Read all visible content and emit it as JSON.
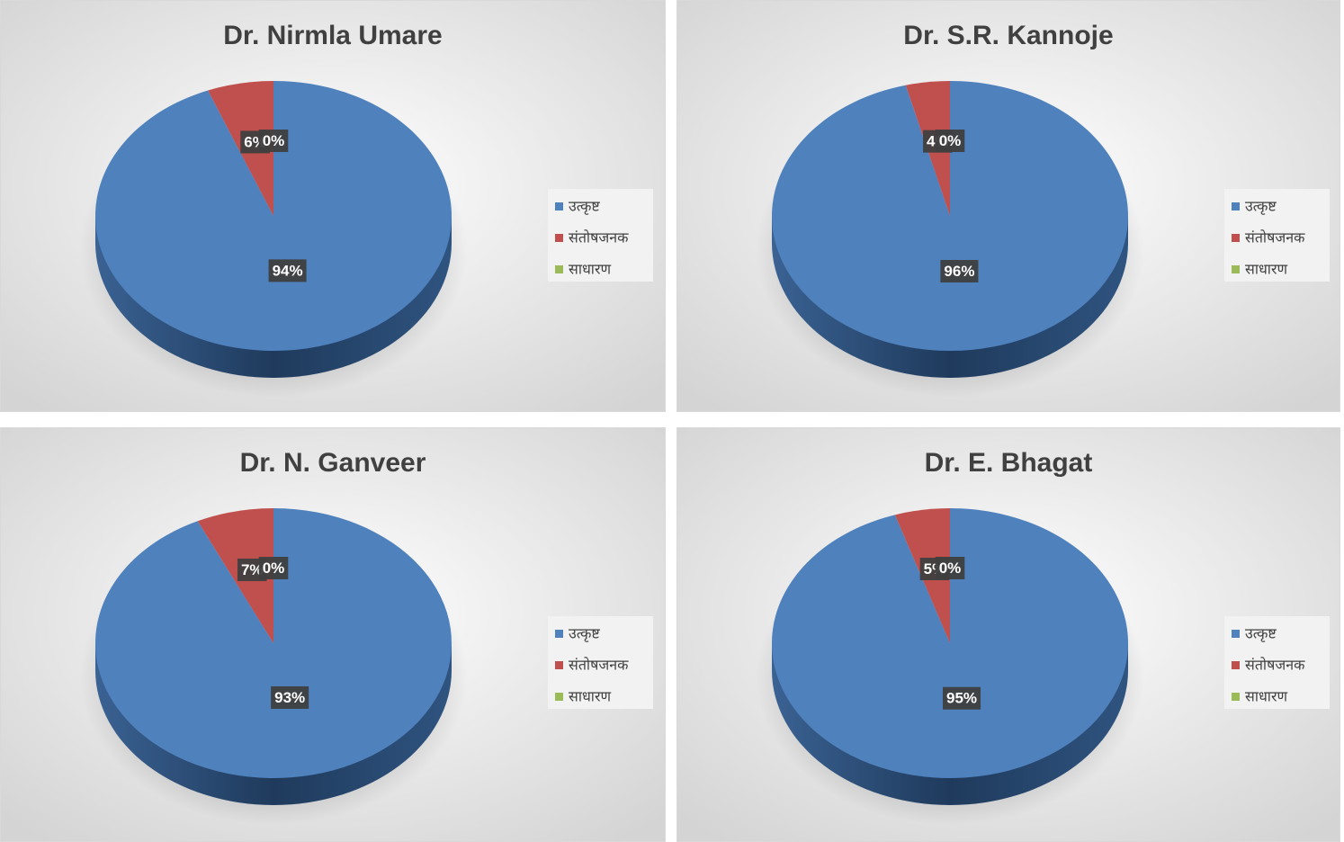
{
  "chart_data": [
    {
      "type": "pie",
      "title": "Dr. Nirmla Umare",
      "categories": [
        "उत्कृष्ट",
        "संतोषजनक",
        "साधारण"
      ],
      "values": [
        94,
        6,
        0
      ],
      "value_labels": [
        "94%",
        "6%",
        "0%"
      ],
      "colors": [
        "#4f81bd",
        "#c0504d",
        "#9bbb59"
      ],
      "legend": "right"
    },
    {
      "type": "pie",
      "title": "Dr. S.R. Kannoje",
      "categories": [
        "उत्कृष्ट",
        "संतोषजनक",
        "साधारण"
      ],
      "values": [
        96,
        4,
        0
      ],
      "value_labels": [
        "96%",
        "4%",
        "0%"
      ],
      "colors": [
        "#4f81bd",
        "#c0504d",
        "#9bbb59"
      ],
      "legend": "right"
    },
    {
      "type": "pie",
      "title": "Dr. N. Ganveer",
      "categories": [
        "उत्कृष्ट",
        "संतोषजनक",
        "साधारण"
      ],
      "values": [
        93,
        7,
        0
      ],
      "value_labels": [
        "93%",
        "7%",
        "0%"
      ],
      "colors": [
        "#4f81bd",
        "#c0504d",
        "#9bbb59"
      ],
      "legend": "right"
    },
    {
      "type": "pie",
      "title": "Dr. E. Bhagat",
      "categories": [
        "उत्कृष्ट",
        "संतोषजनक",
        "साधारण"
      ],
      "values": [
        95,
        5,
        0
      ],
      "value_labels": [
        "95%",
        "5%",
        "0%"
      ],
      "colors": [
        "#4f81bd",
        "#c0504d",
        "#9bbb59"
      ],
      "legend": "right"
    }
  ]
}
